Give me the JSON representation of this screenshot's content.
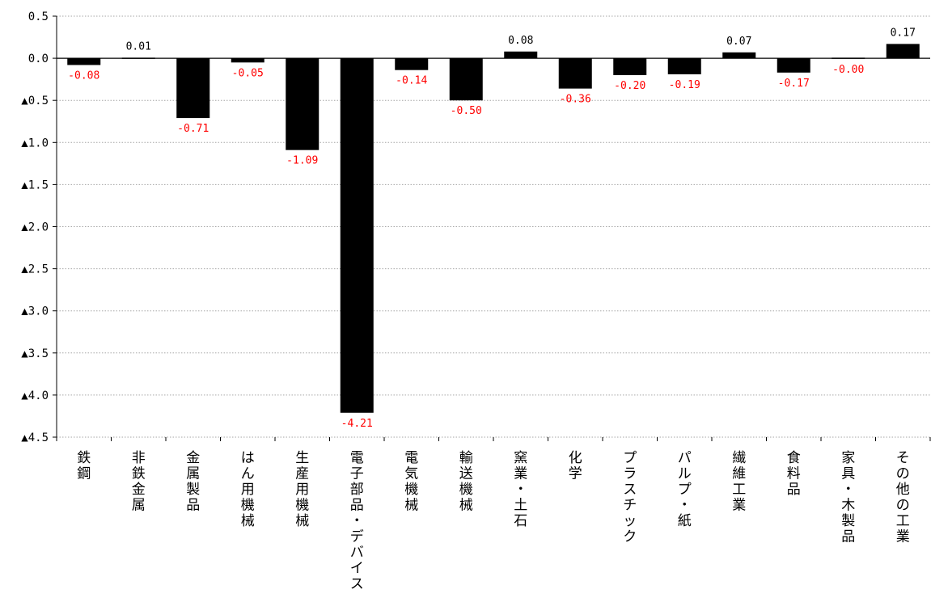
{
  "chart_data": {
    "type": "bar",
    "title": "",
    "xlabel": "",
    "ylabel": "",
    "ylim": [
      -4.5,
      0.5
    ],
    "y_ticks": [
      {
        "value": 0.5,
        "label": "0.5"
      },
      {
        "value": 0.0,
        "label": "0.0"
      },
      {
        "value": -0.5,
        "label": "▲0.5"
      },
      {
        "value": -1.0,
        "label": "▲1.0"
      },
      {
        "value": -1.5,
        "label": "▲1.5"
      },
      {
        "value": -2.0,
        "label": "▲2.0"
      },
      {
        "value": -2.5,
        "label": "▲2.5"
      },
      {
        "value": -3.0,
        "label": "▲3.0"
      },
      {
        "value": -3.5,
        "label": "▲3.5"
      },
      {
        "value": -4.0,
        "label": "▲4.0"
      },
      {
        "value": -4.5,
        "label": "▲4.5"
      }
    ],
    "gridlines": "dotted horizontal",
    "categories": [
      "鉄鋼",
      "非鉄金属",
      "金属製品",
      "はん用機械",
      "生産用機械",
      "電子部品・デバイス",
      "電気機械",
      "輸送機械",
      "窯業・土石",
      "化学",
      "プラスチック",
      "パルプ・紙",
      "繊維工業",
      "食料品",
      "家具・木製品",
      "その他の工業"
    ],
    "values": [
      -0.08,
      0.01,
      -0.71,
      -0.05,
      -1.09,
      -4.21,
      -0.14,
      -0.5,
      0.08,
      -0.36,
      -0.2,
      -0.19,
      0.07,
      -0.17,
      -0.0,
      0.17
    ],
    "data_labels": [
      "-0.08",
      "0.01",
      "-0.71",
      "-0.05",
      "-1.09",
      "-4.21",
      "-0.14",
      "-0.50",
      "0.08",
      "-0.36",
      "-0.20",
      "-0.19",
      "0.07",
      "-0.17",
      "-0.00",
      "0.17"
    ],
    "colors": {
      "bar": "#000000",
      "negative_label": "#ff0000",
      "positive_label": "#000000",
      "gridline": "#a6a6a6",
      "axis": "#000000"
    }
  }
}
